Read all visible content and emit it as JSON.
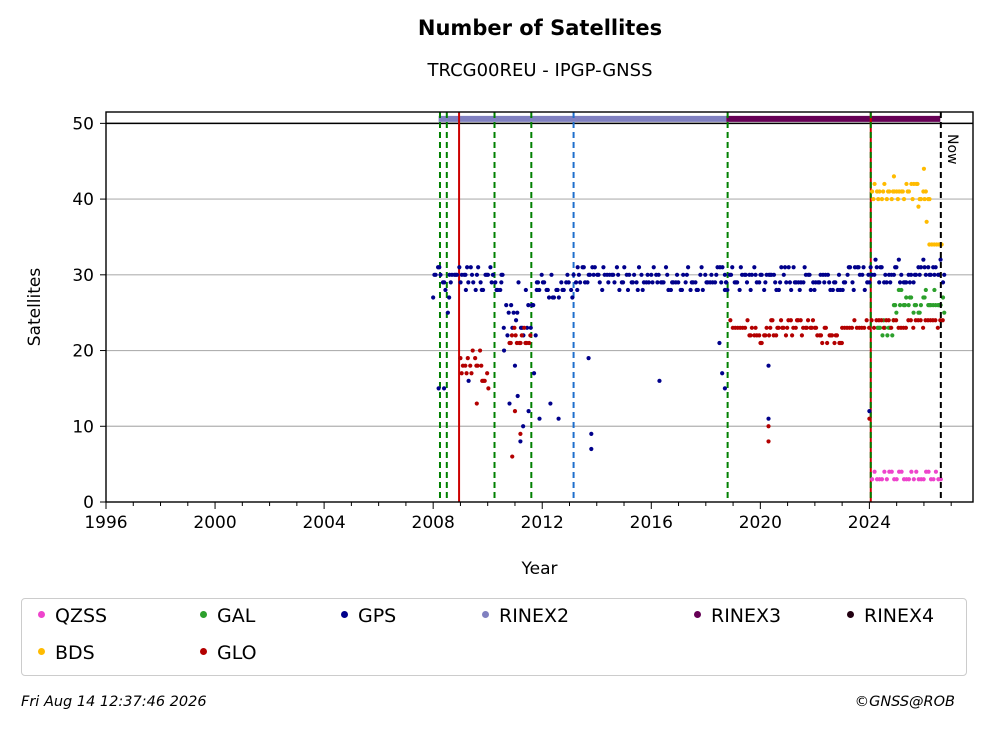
{
  "chart_data": {
    "type": "scatter",
    "title": "Number of Satellites",
    "subtitle": "TRCG00REU - IPGP-GNSS",
    "xlabel": "Year",
    "ylabel": "Satellites",
    "xlim": [
      1996,
      2027.8
    ],
    "ylim": [
      0,
      51.5
    ],
    "x_ticks": [
      1996,
      2000,
      2004,
      2008,
      2012,
      2016,
      2020,
      2024
    ],
    "y_ticks": [
      0,
      10,
      20,
      30,
      40,
      50
    ],
    "grid": "horizontal",
    "legend_position": "bottom",
    "now_label": "Now",
    "now_year": 2026.62,
    "series": [
      {
        "name": "QZSS",
        "color": "#ee44cc",
        "segments": [
          [
            2024.1,
            2026.7,
            3,
            4
          ]
        ]
      },
      {
        "name": "GAL",
        "color": "#2ca02c",
        "segments": [
          [
            2024.3,
            2024.9,
            22,
            24
          ],
          [
            2024.9,
            2026.7,
            25,
            28
          ]
        ]
      },
      {
        "name": "GPS",
        "color": "#00008b",
        "segments": [
          [
            2008.0,
            2008.6,
            25,
            31
          ],
          [
            2008.6,
            2009.2,
            29,
            31
          ],
          [
            2009.2,
            2010.5,
            28,
            31
          ],
          [
            2010.5,
            2011.8,
            22,
            31
          ],
          [
            2011.8,
            2013.3,
            27,
            30
          ],
          [
            2013.3,
            2018.7,
            28,
            31
          ],
          [
            2018.7,
            2024.0,
            28,
            31
          ],
          [
            2024.0,
            2026.7,
            29,
            32
          ]
        ],
        "outliers": [
          [
            2008.2,
            15
          ],
          [
            2008.4,
            15
          ],
          [
            2009.3,
            16
          ],
          [
            2010.6,
            20
          ],
          [
            2010.8,
            13
          ],
          [
            2011.0,
            18
          ],
          [
            2011.1,
            14
          ],
          [
            2011.2,
            8
          ],
          [
            2011.3,
            10
          ],
          [
            2011.5,
            12
          ],
          [
            2011.7,
            17
          ],
          [
            2011.9,
            11
          ],
          [
            2012.3,
            13
          ],
          [
            2012.6,
            11
          ],
          [
            2013.7,
            19
          ],
          [
            2013.8,
            9
          ],
          [
            2013.8,
            7
          ],
          [
            2016.3,
            16
          ],
          [
            2018.5,
            21
          ],
          [
            2018.6,
            17
          ],
          [
            2018.7,
            15
          ],
          [
            2020.3,
            11
          ],
          [
            2020.3,
            18
          ],
          [
            2024.0,
            12
          ]
        ]
      },
      {
        "name": "RINEX2",
        "color": "#8080c0"
      },
      {
        "name": "RINEX3",
        "color": "#660055"
      },
      {
        "name": "RINEX4",
        "color": "#220011"
      },
      {
        "name": "BDS",
        "color": "#ffbb00",
        "segments": [
          [
            2024.1,
            2025.8,
            40,
            42
          ],
          [
            2025.8,
            2026.2,
            39,
            41
          ],
          [
            2026.2,
            2026.7,
            34,
            34
          ]
        ],
        "outliers": [
          [
            2024.9,
            43
          ],
          [
            2026.0,
            44
          ],
          [
            2026.1,
            37
          ]
        ]
      },
      {
        "name": "GLO",
        "color": "#b30000",
        "segments": [
          [
            2009.0,
            2009.8,
            17,
            20
          ],
          [
            2009.8,
            2010.0,
            15,
            17
          ],
          [
            2010.8,
            2011.6,
            21,
            23
          ],
          [
            2018.9,
            2019.6,
            23,
            24
          ],
          [
            2019.6,
            2020.4,
            21,
            23
          ],
          [
            2020.4,
            2022.0,
            22,
            24
          ],
          [
            2022.0,
            2023.0,
            21,
            23
          ],
          [
            2023.0,
            2026.7,
            23,
            24
          ]
        ],
        "outliers": [
          [
            2009.6,
            13
          ],
          [
            2010.9,
            6
          ],
          [
            2011.0,
            12
          ],
          [
            2011.2,
            9
          ],
          [
            2020.3,
            8
          ],
          [
            2020.3,
            10
          ],
          [
            2024.0,
            11
          ]
        ]
      }
    ],
    "rinex_bar": [
      {
        "name": "RINEX2",
        "color": "#8080c0",
        "from": 2008.2,
        "to": 2018.75
      },
      {
        "name": "RINEX3",
        "color": "#660055",
        "from": 2018.75,
        "to": 2026.6
      }
    ],
    "events": [
      {
        "year": 2008.25,
        "color": "#008000",
        "style": "dashed"
      },
      {
        "year": 2008.5,
        "color": "#008000",
        "style": "dashed"
      },
      {
        "year": 2008.95,
        "color": "#cc0000",
        "style": "solid"
      },
      {
        "year": 2010.25,
        "color": "#008000",
        "style": "dashed"
      },
      {
        "year": 2011.6,
        "color": "#008000",
        "style": "dashed"
      },
      {
        "year": 2013.15,
        "color": "#1f6fcc",
        "style": "dashed"
      },
      {
        "year": 2018.8,
        "color": "#008000",
        "style": "dashed"
      },
      {
        "year": 2024.05,
        "color": "#cc0000",
        "style": "solid"
      },
      {
        "year": 2024.05,
        "color": "#008000",
        "style": "dashed"
      }
    ]
  },
  "legend": {
    "items": [
      {
        "label": "QZSS",
        "color": "#ee44cc"
      },
      {
        "label": "GAL",
        "color": "#2ca02c"
      },
      {
        "label": "GPS",
        "color": "#00008b"
      },
      {
        "label": "RINEX2",
        "color": "#8080c0"
      },
      {
        "label": "RINEX3",
        "color": "#660055"
      },
      {
        "label": "RINEX4",
        "color": "#220011"
      },
      {
        "label": "BDS",
        "color": "#ffbb00"
      },
      {
        "label": "GLO",
        "color": "#b30000"
      }
    ]
  },
  "footer": {
    "timestamp": "Fri Aug 14 12:37:46 2026",
    "credit": "©GNSS@ROB"
  }
}
